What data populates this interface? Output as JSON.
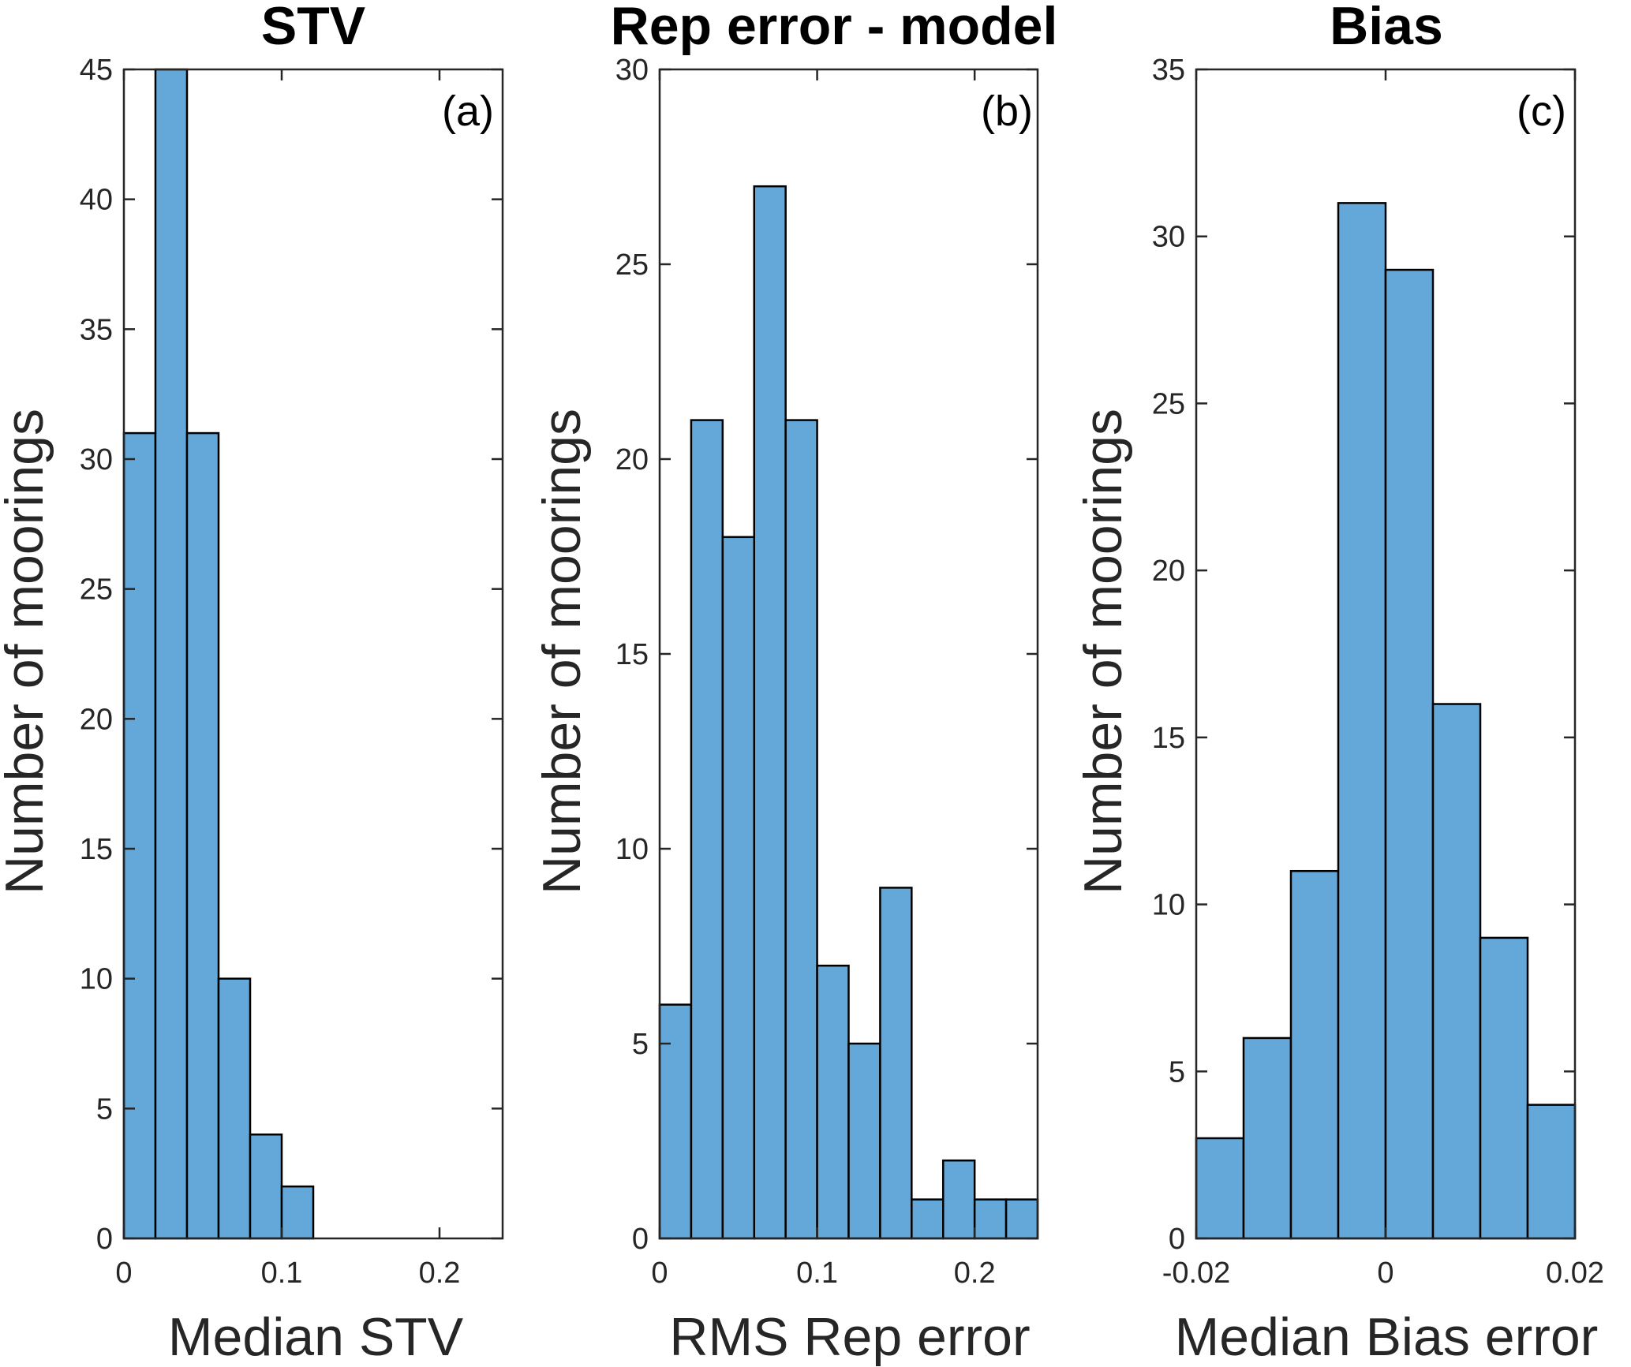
{
  "chart_data": [
    {
      "id": "a",
      "type": "bar",
      "title": "STV",
      "panel_label": "(a)",
      "xlabel": "Median STV",
      "ylabel": "Number of moorings",
      "xlim": [
        0,
        0.24
      ],
      "ylim": [
        0,
        45
      ],
      "xticks": [
        0,
        0.1,
        0.2
      ],
      "xtick_labels": [
        "0",
        "0.1",
        "0.2"
      ],
      "yticks": [
        0,
        5,
        10,
        15,
        20,
        25,
        30,
        35,
        40,
        45
      ],
      "ytick_labels": [
        "0",
        "5",
        "10",
        "15",
        "20",
        "25",
        "30",
        "35",
        "40",
        "45"
      ],
      "bin_edges": [
        0,
        0.02,
        0.04,
        0.06,
        0.08,
        0.1,
        0.12
      ],
      "values": [
        31,
        45,
        31,
        10,
        4,
        2
      ]
    },
    {
      "id": "b",
      "type": "bar",
      "title": "Rep error - model",
      "panel_label": "(b)",
      "xlabel": "RMS Rep error",
      "ylabel": "Number of moorings",
      "xlim": [
        0,
        0.24
      ],
      "ylim": [
        0,
        30
      ],
      "xticks": [
        0,
        0.1,
        0.2
      ],
      "xtick_labels": [
        "0",
        "0.1",
        "0.2"
      ],
      "yticks": [
        0,
        5,
        10,
        15,
        20,
        25,
        30
      ],
      "ytick_labels": [
        "0",
        "5",
        "10",
        "15",
        "20",
        "25",
        "30"
      ],
      "bin_edges": [
        0,
        0.02,
        0.04,
        0.06,
        0.08,
        0.1,
        0.12,
        0.14,
        0.16,
        0.18,
        0.2,
        0.22,
        0.24
      ],
      "values": [
        6,
        21,
        18,
        27,
        21,
        7,
        5,
        9,
        1,
        2,
        1,
        1
      ]
    },
    {
      "id": "c",
      "type": "bar",
      "title": "Bias",
      "panel_label": "(c)",
      "xlabel": "Median Bias error",
      "ylabel": "Number of moorings",
      "xlim": [
        -0.02,
        0.02
      ],
      "ylim": [
        0,
        35
      ],
      "xticks": [
        -0.02,
        0,
        0.02
      ],
      "xtick_labels": [
        "-0.02",
        "0",
        "0.02"
      ],
      "yticks": [
        0,
        5,
        10,
        15,
        20,
        25,
        30,
        35
      ],
      "ytick_labels": [
        "0",
        "5",
        "10",
        "15",
        "20",
        "25",
        "30",
        "35"
      ],
      "bin_edges": [
        -0.02,
        -0.015,
        -0.01,
        -0.005,
        0,
        0.005,
        0.01,
        0.015,
        0.02
      ],
      "values": [
        3,
        6,
        11,
        31,
        29,
        16,
        9,
        4
      ]
    }
  ],
  "colors": {
    "bar_fill": "#63A8D8",
    "bar_edge": "#000000",
    "axis": "#262626"
  }
}
